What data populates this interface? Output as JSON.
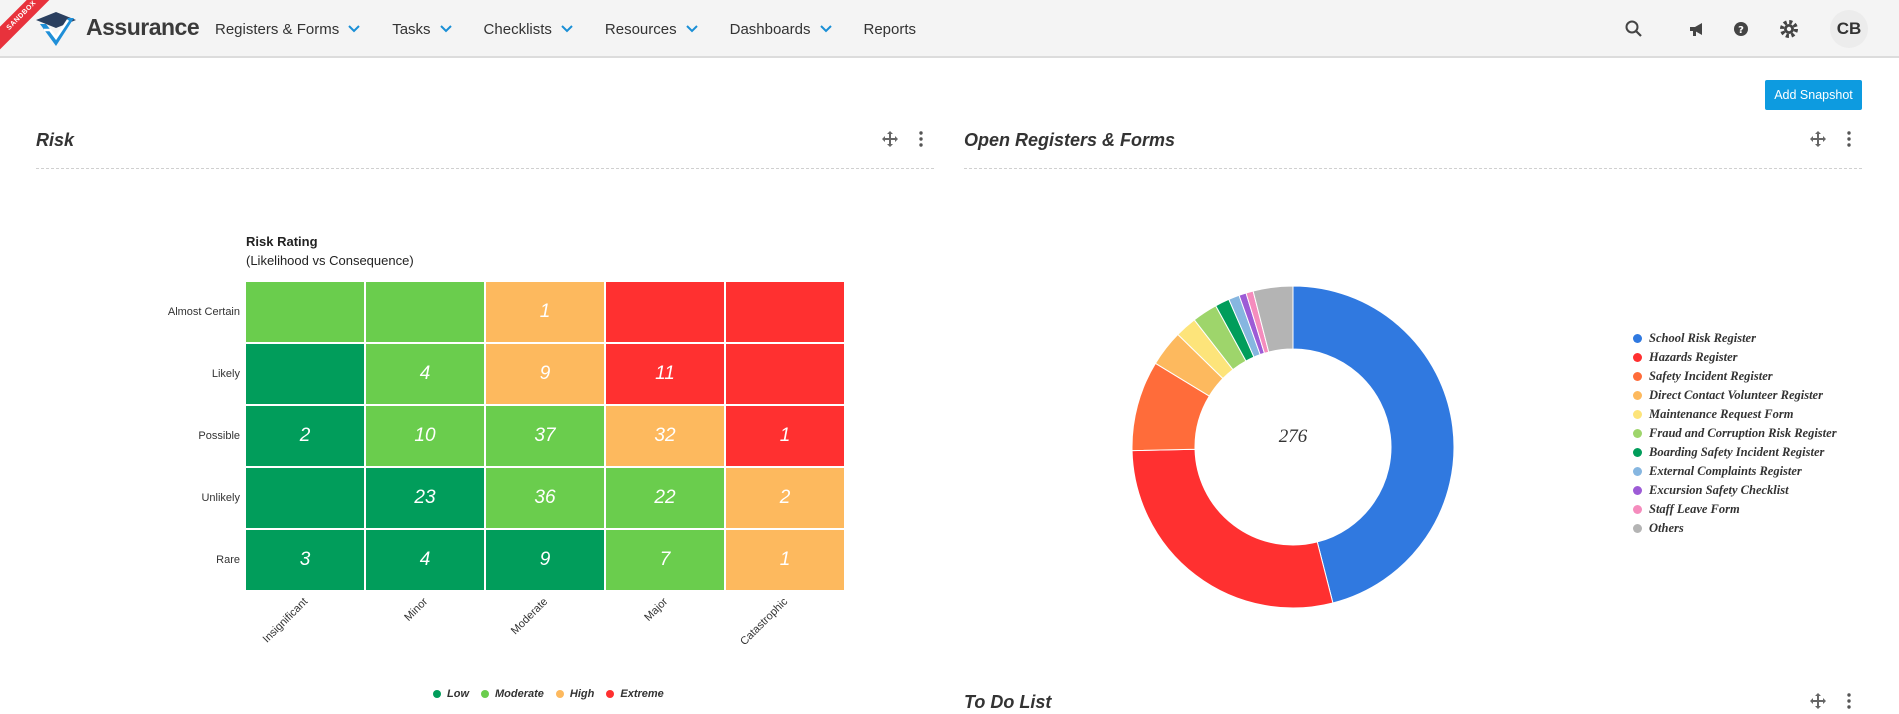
{
  "nav": {
    "ribbon": "SANDBOX",
    "brand": "Assurance",
    "menu": [
      {
        "label": "Registers & Forms",
        "dropdown": true
      },
      {
        "label": "Tasks",
        "dropdown": true
      },
      {
        "label": "Checklists",
        "dropdown": true
      },
      {
        "label": "Resources",
        "dropdown": true
      },
      {
        "label": "Dashboards",
        "dropdown": true
      },
      {
        "label": "Reports",
        "dropdown": false
      }
    ],
    "icons": [
      "search-icon",
      "megaphone-icon",
      "help-icon",
      "gear-icon"
    ],
    "avatar": "CB"
  },
  "add_snapshot_label": "Add Snapshot",
  "panels": {
    "risk": {
      "title": "Risk"
    },
    "open_registers": {
      "title": "Open Registers & Forms"
    },
    "todo": {
      "title": "To Do List"
    }
  },
  "chart_data": [
    {
      "type": "heatmap",
      "title": "Risk Rating",
      "subtitle": "(Likelihood vs Consequence)",
      "rows": [
        "Almost Certain",
        "Likely",
        "Possible",
        "Unlikely",
        "Rare"
      ],
      "columns": [
        "Insignificant",
        "Minor",
        "Moderate",
        "Major",
        "Catastrophic"
      ],
      "values": [
        [
          "",
          "",
          "1",
          "",
          ""
        ],
        [
          "",
          "4",
          "9",
          "11",
          ""
        ],
        [
          "2",
          "10",
          "37",
          "32",
          "1"
        ],
        [
          "",
          "23",
          "36",
          "22",
          "2"
        ],
        [
          "3",
          "4",
          "9",
          "7",
          "1"
        ]
      ],
      "ratings": [
        [
          "Moderate",
          "Moderate",
          "High",
          "Extreme",
          "Extreme"
        ],
        [
          "Low",
          "Moderate",
          "High",
          "Extreme",
          "Extreme"
        ],
        [
          "Low",
          "Moderate",
          "Moderate",
          "High",
          "Extreme"
        ],
        [
          "Low",
          "Low",
          "Moderate",
          "Moderate",
          "High"
        ],
        [
          "Low",
          "Low",
          "Low",
          "Moderate",
          "High"
        ]
      ],
      "legend": [
        {
          "name": "Low",
          "color": "#019d5b"
        },
        {
          "name": "Moderate",
          "color": "#6acd4d"
        },
        {
          "name": "High",
          "color": "#fdb95e"
        },
        {
          "name": "Extreme",
          "color": "#ff3030"
        }
      ]
    },
    {
      "type": "pie",
      "variant": "donut",
      "center_label": "276",
      "slices": [
        {
          "name": "School Risk Register",
          "value": 127,
          "color": "#3079e0"
        },
        {
          "name": "Hazards Register",
          "value": 79,
          "color": "#ff3030"
        },
        {
          "name": "Safety Incident Register",
          "value": 25,
          "color": "#ff6c3a"
        },
        {
          "name": "Direct Contact Volunteer Register",
          "value": 10,
          "color": "#fdb95e"
        },
        {
          "name": "Maintenance Request Form",
          "value": 6,
          "color": "#fde47a"
        },
        {
          "name": "Fraud and Corruption Risk Register",
          "value": 7,
          "color": "#9ed56b"
        },
        {
          "name": "Boarding Safety Incident Register",
          "value": 4,
          "color": "#019d5b"
        },
        {
          "name": "External Complaints Register",
          "value": 3,
          "color": "#86b6e0"
        },
        {
          "name": "Excursion Safety Checklist",
          "value": 2,
          "color": "#9d5bd6"
        },
        {
          "name": "Staff Leave Form",
          "value": 2,
          "color": "#f58cbd"
        },
        {
          "name": "Others",
          "value": 11,
          "color": "#b4b4b4"
        }
      ]
    }
  ]
}
